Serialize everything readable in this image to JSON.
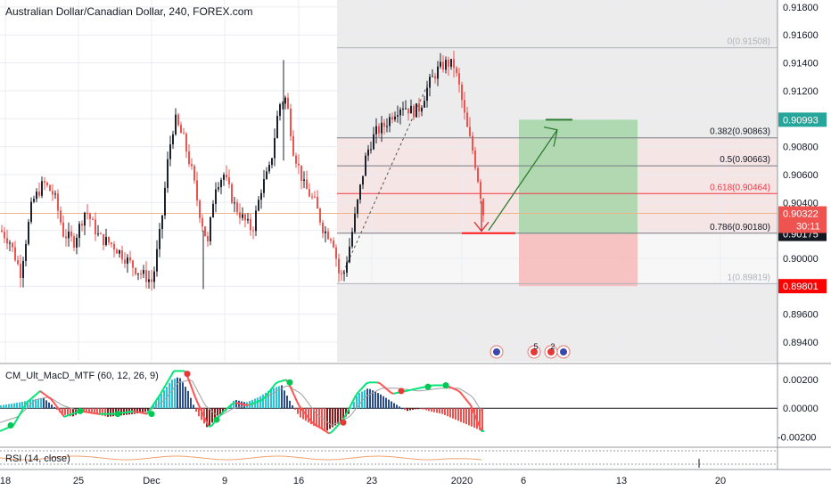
{
  "header": {
    "title": "Australian Dollar/Canadian Dollar, 240, FOREX.com"
  },
  "colors": {
    "up": "#1e222d",
    "down": "#ef5350",
    "grid": "#e9ecf2",
    "fib_line": "#787b86",
    "fib_618": "#f23645",
    "fib_bg": "#e6e6e6",
    "fib_pink": "#f9e3e3",
    "target": "#a5d6a7",
    "stop": "#f7b8b8",
    "macd_pos": "#26c6da",
    "macd_neg": "#ef5350",
    "macd_line": "#00e676",
    "signal_line": "#ff5252",
    "rsi": "#f0a070",
    "arrow_up": "#2e7d32",
    "arrow_down": "#d32f2f"
  },
  "chart_data": {
    "type": "candlestick",
    "symbol": "Australian Dollar/Canadian Dollar",
    "interval": "240",
    "source": "FOREX.com",
    "price_axis": {
      "ylim": [
        0.8926,
        0.9185
      ],
      "ticks": [
        "0.91800",
        "0.91600",
        "0.91400",
        "0.91200",
        "0.91000",
        "0.90800",
        "0.90600",
        "0.90400",
        "0.90200",
        "0.90000",
        "0.89800",
        "0.89600",
        "0.89400"
      ]
    },
    "time_axis": {
      "ticks": [
        "18",
        "25",
        "Dec",
        "9",
        "16",
        "23",
        "2020",
        "6",
        "13",
        "20"
      ]
    },
    "close_path": [
      [
        0,
        0.902
      ],
      [
        10,
        0.9012
      ],
      [
        22,
        0.899
      ],
      [
        35,
        0.904
      ],
      [
        48,
        0.9054
      ],
      [
        60,
        0.9045
      ],
      [
        70,
        0.9018
      ],
      [
        82,
        0.9012
      ],
      [
        95,
        0.9035
      ],
      [
        110,
        0.9015
      ],
      [
        125,
        0.901
      ],
      [
        140,
        0.9
      ],
      [
        150,
        0.8993
      ],
      [
        160,
        0.8988
      ],
      [
        170,
        0.8983
      ],
      [
        180,
        0.9025
      ],
      [
        188,
        0.9075
      ],
      [
        195,
        0.91
      ],
      [
        205,
        0.9085
      ],
      [
        215,
        0.906
      ],
      [
        222,
        0.9035
      ],
      [
        232,
        0.901
      ],
      [
        240,
        0.9052
      ],
      [
        250,
        0.906
      ],
      [
        262,
        0.9038
      ],
      [
        272,
        0.9028
      ],
      [
        282,
        0.902
      ],
      [
        292,
        0.905
      ],
      [
        302,
        0.9065
      ],
      [
        312,
        0.911
      ],
      [
        320,
        0.9115
      ],
      [
        328,
        0.9078
      ],
      [
        340,
        0.9052
      ],
      [
        352,
        0.904
      ],
      [
        362,
        0.902
      ],
      [
        372,
        0.9015
      ],
      [
        380,
        0.8986
      ],
      [
        385,
        0.899
      ],
      [
        392,
        0.9012
      ],
      [
        400,
        0.904
      ],
      [
        410,
        0.9075
      ],
      [
        420,
        0.909
      ],
      [
        430,
        0.9095
      ],
      [
        440,
        0.9104
      ],
      [
        450,
        0.911
      ],
      [
        462,
        0.9105
      ],
      [
        470,
        0.9108
      ],
      [
        480,
        0.9125
      ],
      [
        490,
        0.9135
      ],
      [
        500,
        0.914
      ],
      [
        508,
        0.9138
      ],
      [
        515,
        0.912
      ],
      [
        522,
        0.9095
      ],
      [
        530,
        0.9075
      ],
      [
        537,
        0.905
      ],
      [
        542,
        0.9028
      ]
    ],
    "fib_retracement": [
      {
        "ratio": "0",
        "price": 0.91508,
        "label": "0(0.91508)"
      },
      {
        "ratio": "0.382",
        "price": 0.90863,
        "label": "0.382(0.90863)"
      },
      {
        "ratio": "0.5",
        "price": 0.90663,
        "label": "0.5(0.90663)"
      },
      {
        "ratio": "0.618",
        "price": 0.90464,
        "label": "0.618(0.90464)"
      },
      {
        "ratio": "0.786",
        "price": 0.9018,
        "label": "0.786(0.90180)"
      },
      {
        "ratio": "1",
        "price": 0.89819,
        "label": "1(0.89819)"
      }
    ],
    "position": {
      "entry": 0.90175,
      "target": 0.90993,
      "stop": 0.89801
    },
    "current_price": "0.90322",
    "countdown": "30:11",
    "price_badges": [
      {
        "price": 0.90993,
        "label": "0.90993",
        "color": "#26a69a"
      },
      {
        "price": 0.90322,
        "label": "0.90322",
        "color": "#ef5350"
      },
      {
        "price": 0.90175,
        "label": "0.90175",
        "color": "#131722"
      },
      {
        "price": 0.89801,
        "label": "0.89801",
        "color": "#ff0000"
      }
    ],
    "macd": {
      "name": "CM_Ult_MacD_MTF (60, 12, 26, 9)",
      "ylim": [
        -0.0026,
        0.003
      ],
      "ticks": [
        "0.00200",
        "0.00000",
        "-0.00200"
      ],
      "hist_path": [
        [
          0,
          0.0002
        ],
        [
          20,
          0.0004
        ],
        [
          35,
          0.0006
        ],
        [
          48,
          0.0007
        ],
        [
          58,
          0.0002
        ],
        [
          68,
          -0.0004
        ],
        [
          80,
          -0.0006
        ],
        [
          92,
          -0.0002
        ],
        [
          105,
          -0.0004
        ],
        [
          120,
          -0.0006
        ],
        [
          135,
          -0.0005
        ],
        [
          150,
          -0.0004
        ],
        [
          165,
          -0.0002
        ],
        [
          180,
          0.001
        ],
        [
          192,
          0.002
        ],
        [
          200,
          0.0022
        ],
        [
          210,
          0.0012
        ],
        [
          220,
          -0.0004
        ],
        [
          232,
          -0.0014
        ],
        [
          242,
          -0.0006
        ],
        [
          252,
          -0.0002
        ],
        [
          262,
          0.0006
        ],
        [
          275,
          0.0004
        ],
        [
          290,
          0.0008
        ],
        [
          305,
          0.0014
        ],
        [
          315,
          0.0016
        ],
        [
          325,
          0.0004
        ],
        [
          335,
          -0.0006
        ],
        [
          350,
          -0.0012
        ],
        [
          365,
          -0.0016
        ],
        [
          380,
          -0.001
        ],
        [
          390,
          -0.0004
        ],
        [
          400,
          0.001
        ],
        [
          412,
          0.0014
        ],
        [
          425,
          0.001
        ],
        [
          440,
          0.0004
        ],
        [
          455,
          -0.0002
        ],
        [
          470,
          0.0
        ],
        [
          480,
          -0.0002
        ],
        [
          495,
          -0.0004
        ],
        [
          510,
          -0.0008
        ],
        [
          525,
          -0.0012
        ],
        [
          540,
          -0.0016
        ]
      ],
      "macd_path": [
        [
          0,
          -0.0016
        ],
        [
          15,
          -0.0012
        ],
        [
          30,
          0.0004
        ],
        [
          45,
          0.0012
        ],
        [
          58,
          0.0006
        ],
        [
          72,
          -0.0006
        ],
        [
          90,
          -0.0002
        ],
        [
          110,
          -0.0004
        ],
        [
          130,
          -0.0004
        ],
        [
          150,
          -0.0002
        ],
        [
          165,
          -0.0004
        ],
        [
          180,
          0.001
        ],
        [
          195,
          0.0026
        ],
        [
          208,
          0.0026
        ],
        [
          220,
          0.0006
        ],
        [
          235,
          -0.0014
        ],
        [
          248,
          -0.0004
        ],
        [
          262,
          0.0004
        ],
        [
          278,
          0.0002
        ],
        [
          295,
          0.0006
        ],
        [
          310,
          0.0018
        ],
        [
          322,
          0.002
        ],
        [
          335,
          0.0002
        ],
        [
          350,
          -0.001
        ],
        [
          370,
          -0.0018
        ],
        [
          385,
          -0.0008
        ],
        [
          400,
          0.001
        ],
        [
          412,
          0.0018
        ],
        [
          425,
          0.0018
        ],
        [
          440,
          0.001
        ],
        [
          455,
          0.0012
        ],
        [
          470,
          0.0014
        ],
        [
          485,
          0.0016
        ],
        [
          500,
          0.0016
        ],
        [
          515,
          0.0012
        ],
        [
          528,
          0.0002
        ],
        [
          540,
          -0.0016
        ]
      ],
      "signal_path": [
        [
          0,
          -0.001
        ],
        [
          20,
          -0.0006
        ],
        [
          40,
          0.0006
        ],
        [
          55,
          0.0008
        ],
        [
          70,
          0.0002
        ],
        [
          90,
          -0.0002
        ],
        [
          115,
          -0.0004
        ],
        [
          140,
          -0.0003
        ],
        [
          165,
          -0.0003
        ],
        [
          185,
          0.0006
        ],
        [
          200,
          0.0018
        ],
        [
          215,
          0.002
        ],
        [
          230,
          0.0002
        ],
        [
          245,
          -0.0006
        ],
        [
          262,
          0.0
        ],
        [
          285,
          0.0003
        ],
        [
          305,
          0.001
        ],
        [
          322,
          0.0016
        ],
        [
          338,
          0.001
        ],
        [
          355,
          -0.0004
        ],
        [
          372,
          -0.0012
        ],
        [
          392,
          -0.0006
        ],
        [
          410,
          0.0008
        ],
        [
          428,
          0.0014
        ],
        [
          445,
          0.0014
        ],
        [
          470,
          0.0012
        ],
        [
          495,
          0.0014
        ],
        [
          515,
          0.0014
        ],
        [
          530,
          0.0008
        ],
        [
          542,
          -0.0004
        ]
      ]
    },
    "rsi": {
      "name": "RSI (14, close)"
    }
  }
}
